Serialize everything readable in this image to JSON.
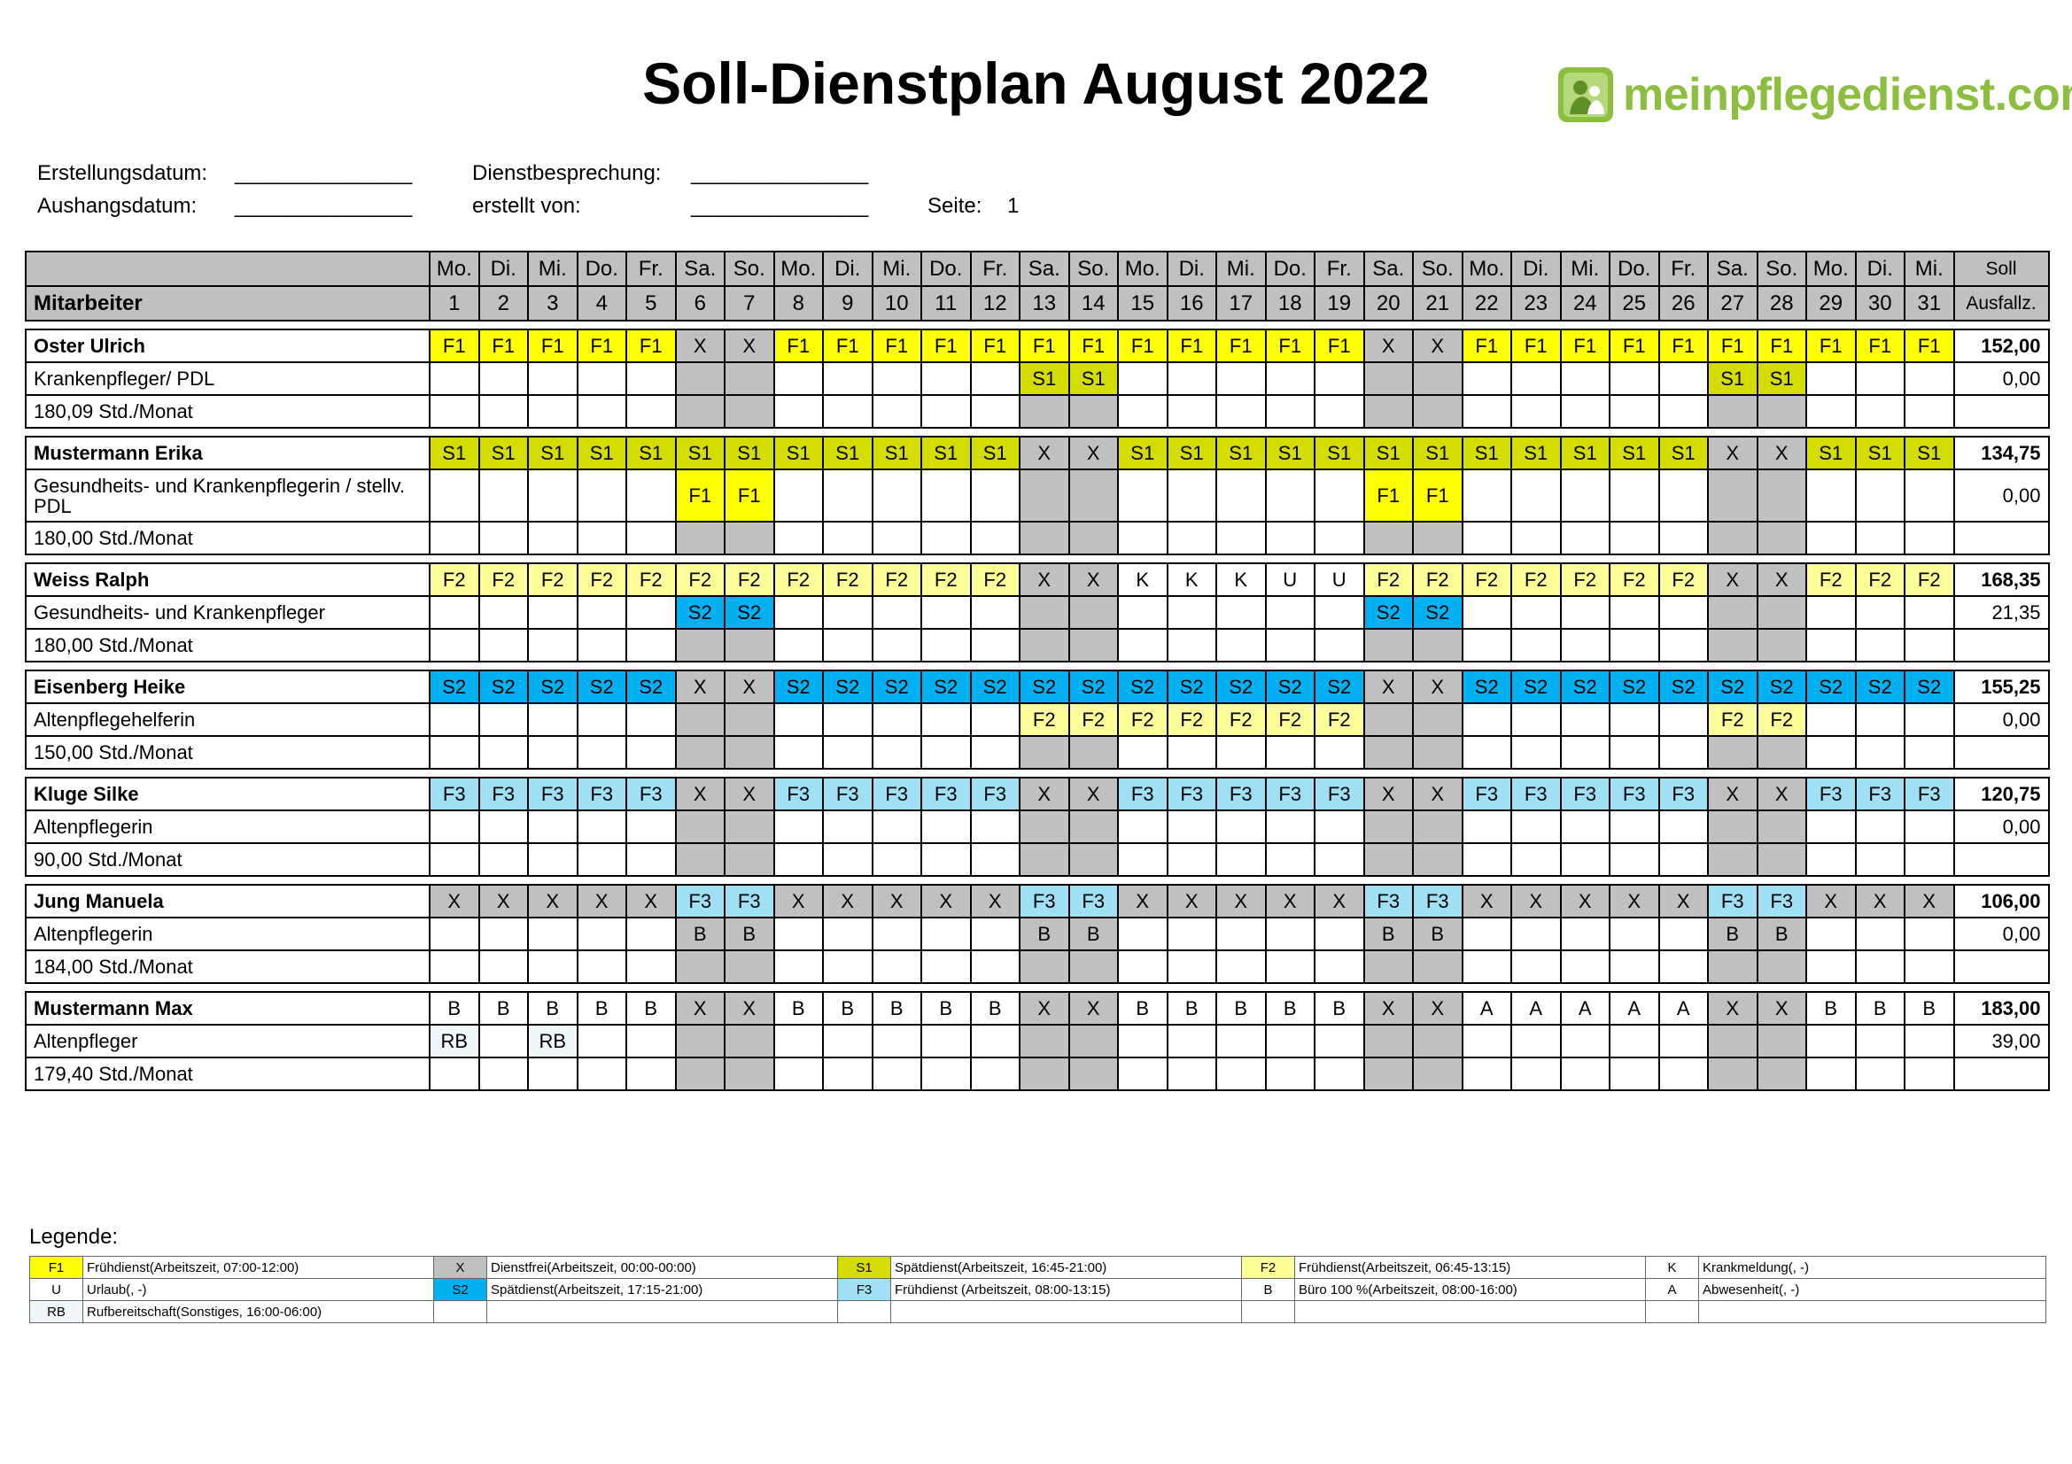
{
  "title": "Soll-Dienstplan August 2022",
  "logo": {
    "text": "meinpflegedienst.com",
    "green": "#8cbf3f"
  },
  "meta": {
    "erstellungsdatum_label": "Erstellungsdatum:",
    "erstellungsdatum_value": "_______________",
    "aushangsdatum_label": "Aushangsdatum:",
    "aushangsdatum_value": "_______________",
    "dienstbesprechung_label": "Dienstbesprechung:",
    "dienstbesprechung_value": "_______________",
    "erstellt_von_label": "erstellt von:",
    "erstellt_von_value": "_______________",
    "seite_label": "Seite:",
    "seite_value": "1"
  },
  "header": {
    "mitarbeiter": "Mitarbeiter",
    "soll": "Soll",
    "ausfallz": "Ausfallz.",
    "weekdays": [
      "Mo.",
      "Di.",
      "Mi.",
      "Do.",
      "Fr.",
      "Sa.",
      "So.",
      "Mo.",
      "Di.",
      "Mi.",
      "Do.",
      "Fr.",
      "Sa.",
      "So.",
      "Mo.",
      "Di.",
      "Mi.",
      "Do.",
      "Fr.",
      "Sa.",
      "So.",
      "Mo.",
      "Di.",
      "Mi.",
      "Do.",
      "Fr.",
      "Sa.",
      "So.",
      "Mo.",
      "Di.",
      "Mi."
    ],
    "days": [
      "1",
      "2",
      "3",
      "4",
      "5",
      "6",
      "7",
      "8",
      "9",
      "10",
      "11",
      "12",
      "13",
      "14",
      "15",
      "16",
      "17",
      "18",
      "19",
      "20",
      "21",
      "22",
      "23",
      "24",
      "25",
      "26",
      "27",
      "28",
      "29",
      "30",
      "31"
    ]
  },
  "colors": {
    "F1": "#ffff00",
    "S1": "#d4dc00",
    "F2": "#ffff99",
    "S2": "#00b0f0",
    "F3": "#9fe0f4",
    "X": "#c0c0c0",
    "RB": "#f0f7fb",
    "weekend": "#c0c0c0",
    "white": "#ffffff"
  },
  "employees": [
    {
      "name": "Oster Ulrich",
      "role": "Krankenpfleger/ PDL",
      "hours": "180,09 Std./Monat",
      "soll": "152,00",
      "ausfall": "0,00",
      "row1": [
        "F1",
        "F1",
        "F1",
        "F1",
        "F1",
        "X",
        "X",
        "F1",
        "F1",
        "F1",
        "F1",
        "F1",
        "F1",
        "F1",
        "F1",
        "F1",
        "F1",
        "F1",
        "F1",
        "X",
        "X",
        "F1",
        "F1",
        "F1",
        "F1",
        "F1",
        "F1",
        "F1",
        "F1",
        "F1",
        "F1"
      ],
      "row2": [
        "",
        "",
        "",
        "",
        "",
        "",
        "",
        "",
        "",
        "",
        "",
        "",
        "S1",
        "S1",
        "",
        "",
        "",
        "",
        "",
        "",
        "",
        "",
        "",
        "",
        "",
        "",
        "S1",
        "S1",
        "",
        "",
        ""
      ],
      "row3": [
        "",
        "",
        "",
        "",
        "",
        "",
        "",
        "",
        "",
        "",
        "",
        "",
        "",
        "",
        "",
        "",
        "",
        "",
        "",
        "",
        "",
        "",
        "",
        "",
        "",
        "",
        "",
        "",
        "",
        "",
        ""
      ]
    },
    {
      "name": "Mustermann Erika",
      "role": "Gesundheits- und Krankenpflegerin / stellv. PDL",
      "hours": "180,00 Std./Monat",
      "soll": "134,75",
      "ausfall": "0,00",
      "tall": true,
      "row1": [
        "S1",
        "S1",
        "S1",
        "S1",
        "S1",
        "S1",
        "S1",
        "S1",
        "S1",
        "S1",
        "S1",
        "S1",
        "X",
        "X",
        "S1",
        "S1",
        "S1",
        "S1",
        "S1",
        "S1",
        "S1",
        "S1",
        "S1",
        "S1",
        "S1",
        "S1",
        "X",
        "X",
        "S1",
        "S1",
        "S1"
      ],
      "row2": [
        "",
        "",
        "",
        "",
        "",
        "F1",
        "F1",
        "",
        "",
        "",
        "",
        "",
        "",
        "",
        "",
        "",
        "",
        "",
        "",
        "F1",
        "F1",
        "",
        "",
        "",
        "",
        "",
        "",
        "",
        "",
        "",
        ""
      ],
      "row3": [
        "",
        "",
        "",
        "",
        "",
        "",
        "",
        "",
        "",
        "",
        "",
        "",
        "",
        "",
        "",
        "",
        "",
        "",
        "",
        "",
        "",
        "",
        "",
        "",
        "",
        "",
        "",
        "",
        "",
        "",
        ""
      ]
    },
    {
      "name": "Weiss Ralph",
      "role": "Gesundheits- und Krankenpfleger",
      "hours": "180,00 Std./Monat",
      "soll": "168,35",
      "ausfall": "21,35",
      "row1": [
        "F2",
        "F2",
        "F2",
        "F2",
        "F2",
        "F2",
        "F2",
        "F2",
        "F2",
        "F2",
        "F2",
        "F2",
        "X",
        "X",
        "K",
        "K",
        "K",
        "U",
        "U",
        "F2",
        "F2",
        "F2",
        "F2",
        "F2",
        "F2",
        "F2",
        "X",
        "X",
        "F2",
        "F2",
        "F2"
      ],
      "row2": [
        "",
        "",
        "",
        "",
        "",
        "S2",
        "S2",
        "",
        "",
        "",
        "",
        "",
        "",
        "",
        "",
        "",
        "",
        "",
        "",
        "S2",
        "S2",
        "",
        "",
        "",
        "",
        "",
        "",
        "",
        "",
        "",
        ""
      ],
      "row3": [
        "",
        "",
        "",
        "",
        "",
        "",
        "",
        "",
        "",
        "",
        "",
        "",
        "",
        "",
        "",
        "",
        "",
        "",
        "",
        "",
        "",
        "",
        "",
        "",
        "",
        "",
        "",
        "",
        "",
        "",
        ""
      ]
    },
    {
      "name": "Eisenberg Heike",
      "role": "Altenpflegehelferin",
      "hours": "150,00 Std./Monat",
      "soll": "155,25",
      "ausfall": "0,00",
      "row1": [
        "S2",
        "S2",
        "S2",
        "S2",
        "S2",
        "X",
        "X",
        "S2",
        "S2",
        "S2",
        "S2",
        "S2",
        "S2",
        "S2",
        "S2",
        "S2",
        "S2",
        "S2",
        "S2",
        "X",
        "X",
        "S2",
        "S2",
        "S2",
        "S2",
        "S2",
        "S2",
        "S2",
        "S2",
        "S2",
        "S2"
      ],
      "row2": [
        "",
        "",
        "",
        "",
        "",
        "",
        "",
        "",
        "",
        "",
        "",
        "",
        "F2",
        "F2",
        "F2",
        "F2",
        "F2",
        "F2",
        "F2",
        "",
        "",
        "",
        "",
        "",
        "",
        "",
        "F2",
        "F2",
        "",
        "",
        ""
      ],
      "row3": [
        "",
        "",
        "",
        "",
        "",
        "",
        "",
        "",
        "",
        "",
        "",
        "",
        "",
        "",
        "",
        "",
        "",
        "",
        "",
        "",
        "",
        "",
        "",
        "",
        "",
        "",
        "",
        "",
        "",
        "",
        ""
      ]
    },
    {
      "name": "Kluge Silke",
      "role": "Altenpflegerin",
      "hours": "90,00 Std./Monat",
      "soll": "120,75",
      "ausfall": "0,00",
      "row1": [
        "F3",
        "F3",
        "F3",
        "F3",
        "F3",
        "X",
        "X",
        "F3",
        "F3",
        "F3",
        "F3",
        "F3",
        "X",
        "X",
        "F3",
        "F3",
        "F3",
        "F3",
        "F3",
        "X",
        "X",
        "F3",
        "F3",
        "F3",
        "F3",
        "F3",
        "X",
        "X",
        "F3",
        "F3",
        "F3"
      ],
      "row2": [
        "",
        "",
        "",
        "",
        "",
        "",
        "",
        "",
        "",
        "",
        "",
        "",
        "",
        "",
        "",
        "",
        "",
        "",
        "",
        "",
        "",
        "",
        "",
        "",
        "",
        "",
        "",
        "",
        "",
        "",
        ""
      ],
      "row3": [
        "",
        "",
        "",
        "",
        "",
        "",
        "",
        "",
        "",
        "",
        "",
        "",
        "",
        "",
        "",
        "",
        "",
        "",
        "",
        "",
        "",
        "",
        "",
        "",
        "",
        "",
        "",
        "",
        "",
        "",
        ""
      ]
    },
    {
      "name": "Jung Manuela",
      "role": "Altenpflegerin",
      "hours": "184,00 Std./Monat",
      "soll": "106,00",
      "ausfall": "0,00",
      "row1": [
        "X",
        "X",
        "X",
        "X",
        "X",
        "F3",
        "F3",
        "X",
        "X",
        "X",
        "X",
        "X",
        "F3",
        "F3",
        "X",
        "X",
        "X",
        "X",
        "X",
        "F3",
        "F3",
        "X",
        "X",
        "X",
        "X",
        "X",
        "F3",
        "F3",
        "X",
        "X",
        "X"
      ],
      "row2": [
        "",
        "",
        "",
        "",
        "",
        "B",
        "B",
        "",
        "",
        "",
        "",
        "",
        "B",
        "B",
        "",
        "",
        "",
        "",
        "",
        "B",
        "B",
        "",
        "",
        "",
        "",
        "",
        "B",
        "B",
        "",
        "",
        ""
      ],
      "row3": [
        "",
        "",
        "",
        "",
        "",
        "",
        "",
        "",
        "",
        "",
        "",
        "",
        "",
        "",
        "",
        "",
        "",
        "",
        "",
        "",
        "",
        "",
        "",
        "",
        "",
        "",
        "",
        "",
        "",
        "",
        ""
      ]
    },
    {
      "name": "Mustermann Max",
      "role": "Altenpfleger",
      "hours": "179,40 Std./Monat",
      "soll": "183,00",
      "ausfall": "39,00",
      "row1": [
        "B",
        "B",
        "B",
        "B",
        "B",
        "X",
        "X",
        "B",
        "B",
        "B",
        "B",
        "B",
        "X",
        "X",
        "B",
        "B",
        "B",
        "B",
        "B",
        "X",
        "X",
        "A",
        "A",
        "A",
        "A",
        "A",
        "X",
        "X",
        "B",
        "B",
        "B"
      ],
      "row2": [
        "RB",
        "",
        "RB",
        "",
        "",
        "",
        "",
        "",
        "",
        "",
        "",
        "",
        "",
        "",
        "",
        "",
        "",
        "",
        "",
        "",
        "",
        "",
        "",
        "",
        "",
        "",
        "",
        "",
        "",
        "",
        ""
      ],
      "row3": [
        "",
        "",
        "",
        "",
        "",
        "",
        "",
        "",
        "",
        "",
        "",
        "",
        "",
        "",
        "",
        "",
        "",
        "",
        "",
        "",
        "",
        "",
        "",
        "",
        "",
        "",
        "",
        "",
        "",
        "",
        ""
      ]
    }
  ],
  "legend_title": "Legende:",
  "legend": [
    [
      {
        "code": "F1",
        "text": "Frühdienst(Arbeitszeit, 07:00-12:00)"
      },
      {
        "code": "X",
        "text": "Dienstfrei(Arbeitszeit, 00:00-00:00)"
      },
      {
        "code": "S1",
        "text": "Spätdienst(Arbeitszeit, 16:45-21:00)"
      },
      {
        "code": "F2",
        "text": "Frühdienst(Arbeitszeit, 06:45-13:15)"
      },
      {
        "code": "K",
        "text": "Krankmeldung(, -)"
      }
    ],
    [
      {
        "code": "U",
        "text": "Urlaub(, -)"
      },
      {
        "code": "S2",
        "text": "Spätdienst(Arbeitszeit, 17:15-21:00)"
      },
      {
        "code": "F3",
        "text": "Frühdienst (Arbeitszeit, 08:00-13:15)"
      },
      {
        "code": "B",
        "text": "Büro 100 %(Arbeitszeit, 08:00-16:00)"
      },
      {
        "code": "A",
        "text": "Abwesenheit(, -)"
      }
    ],
    [
      {
        "code": "RB",
        "text": "Rufbereitschaft(Sonstiges, 16:00-06:00)"
      },
      {
        "code": "",
        "text": ""
      },
      {
        "code": "",
        "text": ""
      },
      {
        "code": "",
        "text": ""
      },
      {
        "code": "",
        "text": ""
      }
    ]
  ]
}
